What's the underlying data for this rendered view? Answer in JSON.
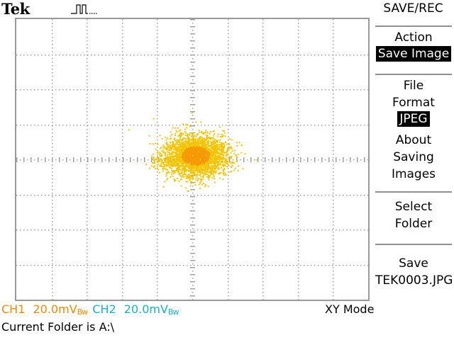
{
  "header": {
    "brand": "Tek",
    "trigger_icon": "pulse-trigger-icon"
  },
  "side_menu": {
    "title": "SAVE/REC",
    "action": {
      "label": "Action",
      "value": "Save Image"
    },
    "file_format": {
      "label_line1": "File",
      "label_line2": "Format",
      "value": "JPEG"
    },
    "about": {
      "line1": "About",
      "line2": "Saving",
      "line3": "Images"
    },
    "select_folder": {
      "line1": "Select",
      "line2": "Folder"
    },
    "save": {
      "line1": "Save",
      "line2": "TEK0003.JPG"
    }
  },
  "status_bar": {
    "ch1_label": "CH1",
    "ch1_scale": "20.0mV",
    "ch1_bw": "Bw",
    "ch2_label": "CH2",
    "ch2_scale": "20.0mV",
    "ch2_bw": "Bw",
    "mode": "XY Mode",
    "folder": "Current Folder is A:\\"
  },
  "colors": {
    "ch1": "#f08a00",
    "ch2": "#12b4c8",
    "trace_outer": "#f5c400",
    "trace_core": "#f59a00",
    "grid": "#a0a0a0",
    "menu_highlight_bg": "#000000"
  },
  "display": {
    "grid_divisions_x": 10,
    "grid_divisions_y": 8
  }
}
